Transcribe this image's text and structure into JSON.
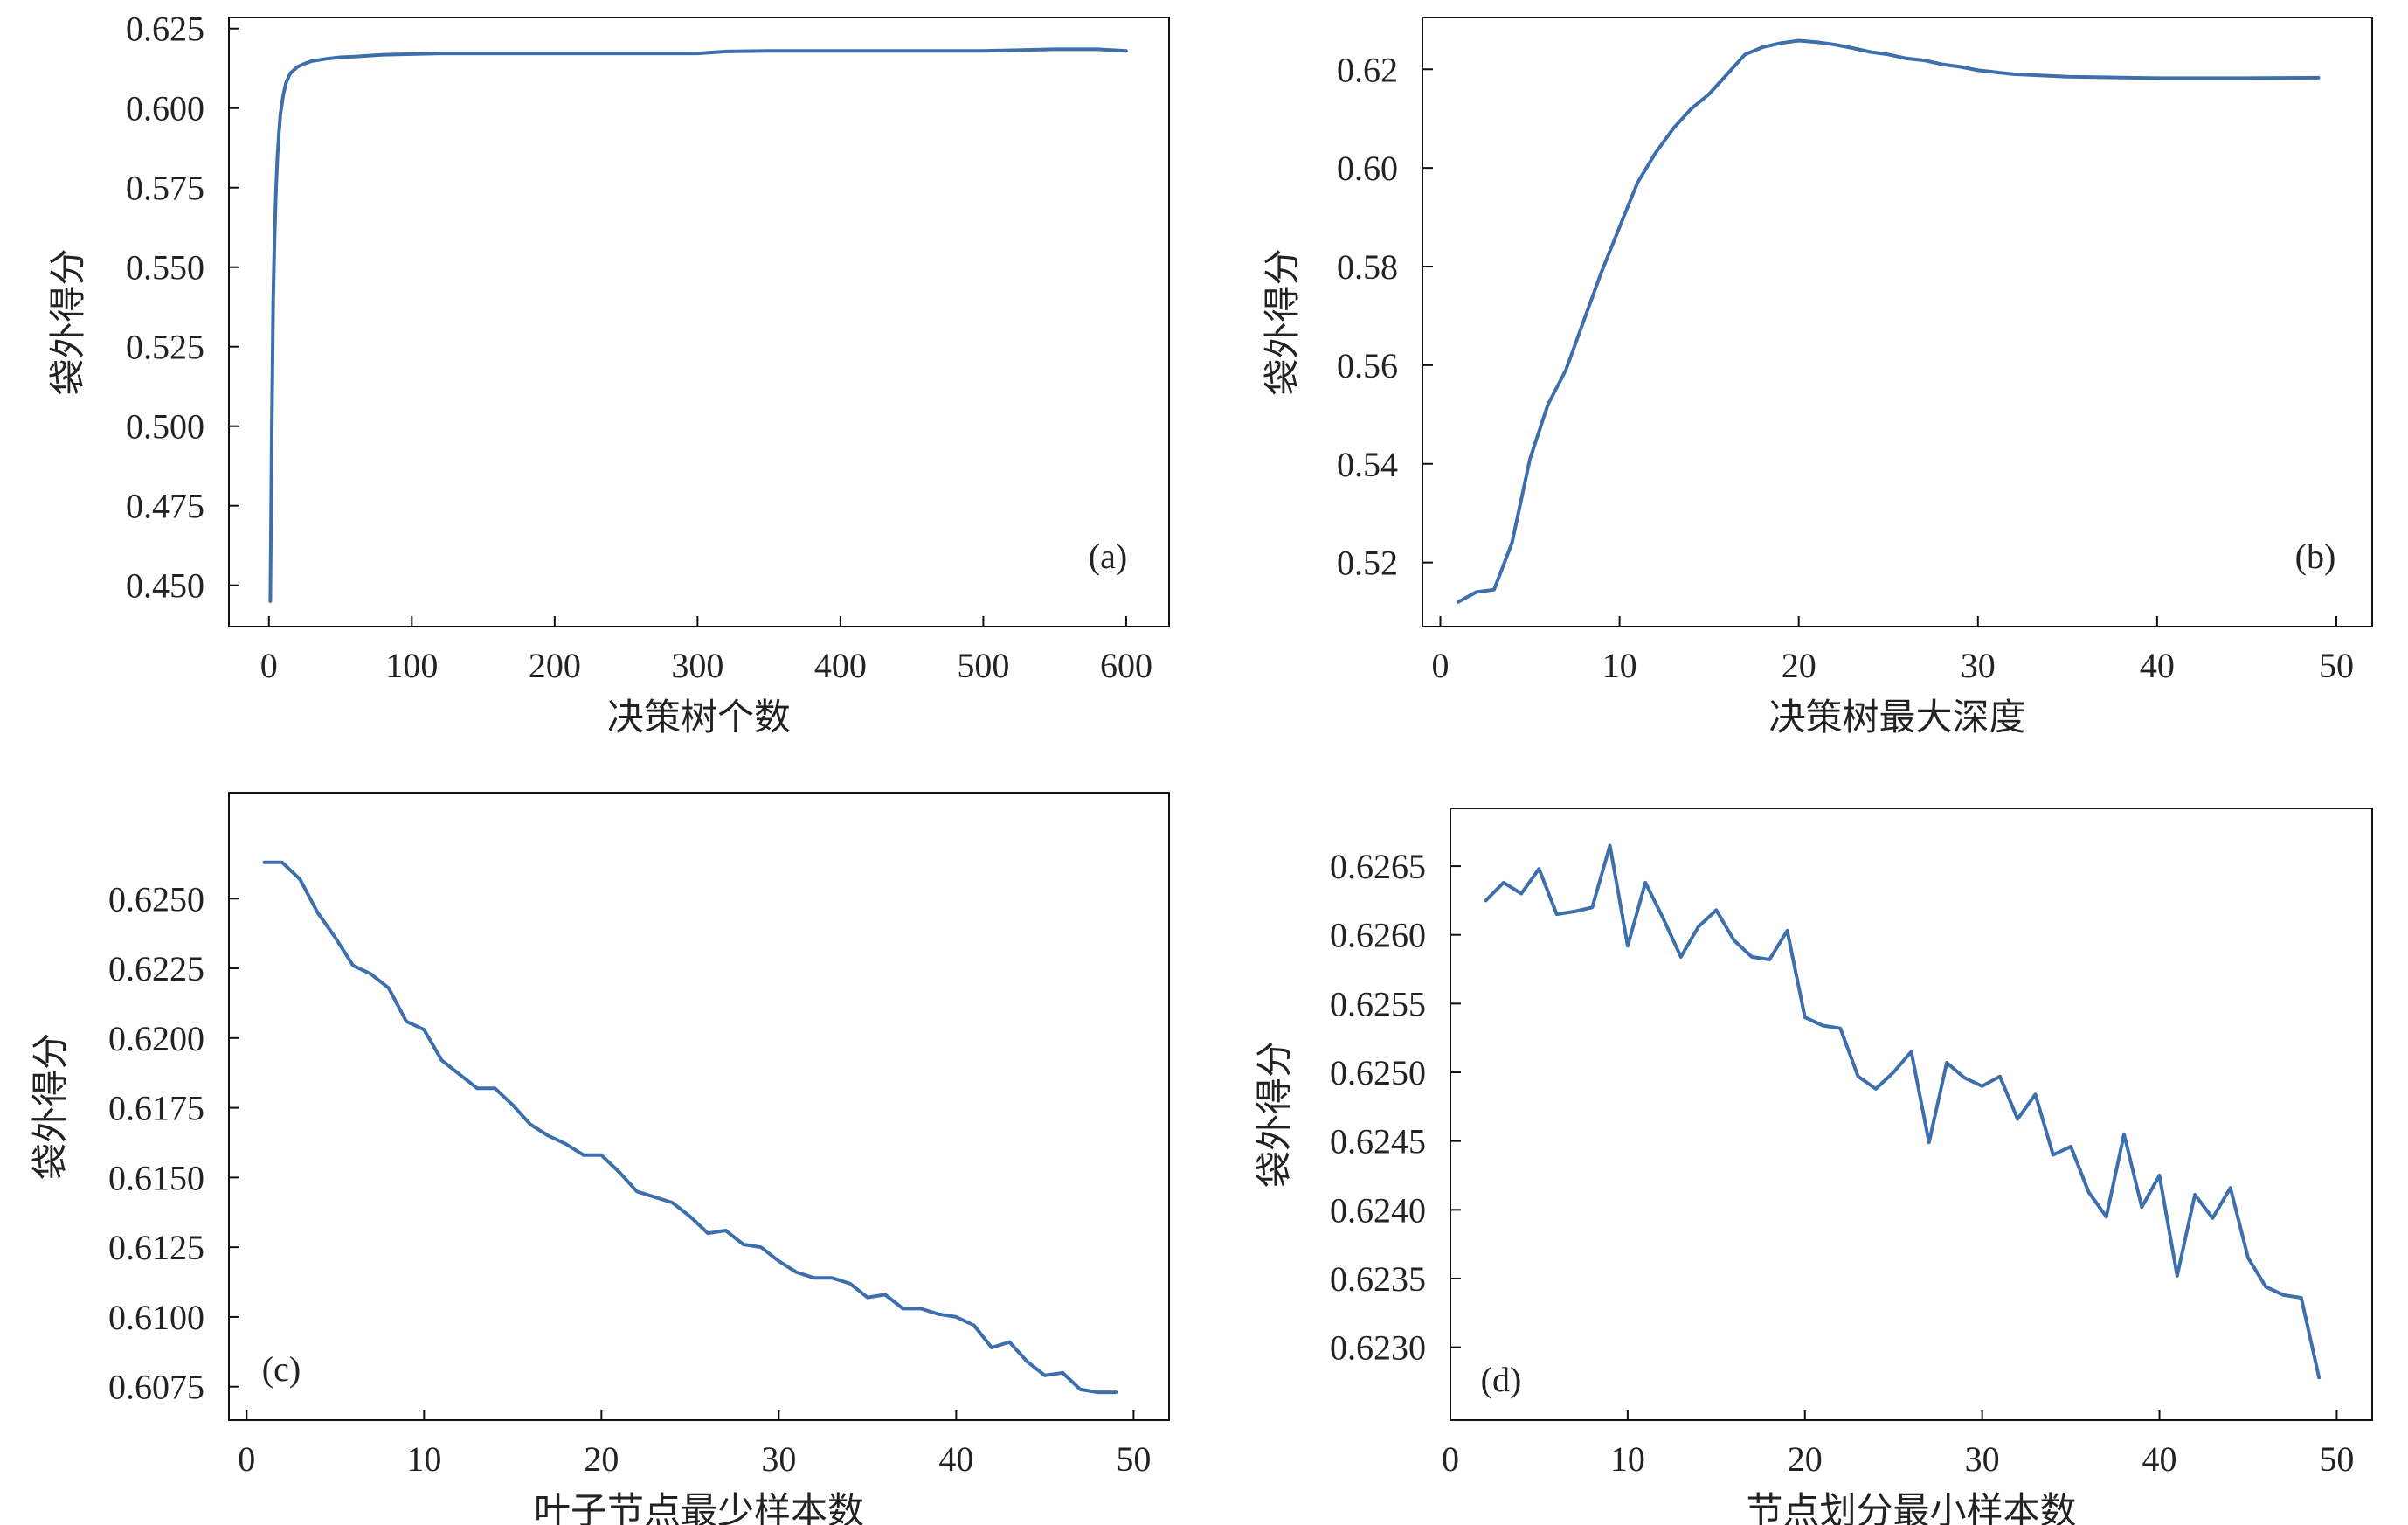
{
  "colors": {
    "series": "#3d6fad",
    "axis": "#111111",
    "text": "#222222"
  },
  "chart_data": [
    {
      "type": "line",
      "panel_label": "(a)",
      "xlabel": "决策树个数",
      "ylabel": "袋外得分",
      "xlim": [
        -28,
        630
      ],
      "ylim": [
        0.437,
        0.6285
      ],
      "xticks": [
        0,
        100,
        200,
        300,
        400,
        500,
        600
      ],
      "yticks": [
        0.45,
        0.475,
        0.5,
        0.525,
        0.55,
        0.575,
        0.6,
        0.625
      ],
      "ytick_decimals": 3,
      "series": [
        {
          "x": [
            1,
            2,
            3,
            4,
            5,
            6,
            7,
            8,
            10,
            12,
            15,
            20,
            25,
            30,
            40,
            50,
            60,
            80,
            100,
            120,
            150,
            200,
            250,
            300,
            320,
            350,
            400,
            450,
            500,
            550,
            580,
            600
          ],
          "values": [
            0.445,
            0.5,
            0.54,
            0.56,
            0.575,
            0.585,
            0.592,
            0.598,
            0.604,
            0.608,
            0.611,
            0.613,
            0.614,
            0.6148,
            0.6155,
            0.616,
            0.6162,
            0.6168,
            0.617,
            0.6172,
            0.6172,
            0.6172,
            0.6172,
            0.6172,
            0.6178,
            0.618,
            0.618,
            0.618,
            0.618,
            0.6185,
            0.6185,
            0.618
          ]
        }
      ]
    },
    {
      "type": "line",
      "panel_label": "(b)",
      "xlabel": "决策树最大深度",
      "ylabel": "袋外得分",
      "xlim": [
        -1,
        52
      ],
      "ylim": [
        0.507,
        0.6305
      ],
      "xticks": [
        0,
        10,
        20,
        30,
        40,
        50
      ],
      "yticks": [
        0.52,
        0.54,
        0.56,
        0.58,
        0.6,
        0.62
      ],
      "ytick_decimals": 2,
      "series": [
        {
          "x": [
            1,
            2,
            3,
            4,
            5,
            6,
            7,
            8,
            9,
            10,
            11,
            12,
            13,
            14,
            15,
            16,
            17,
            18,
            19,
            20,
            21,
            22,
            23,
            24,
            25,
            26,
            27,
            28,
            29,
            30,
            32,
            35,
            40,
            45,
            49
          ],
          "values": [
            0.512,
            0.514,
            0.5145,
            0.524,
            0.541,
            0.552,
            0.559,
            0.569,
            0.579,
            0.588,
            0.597,
            0.603,
            0.608,
            0.612,
            0.615,
            0.619,
            0.623,
            0.6245,
            0.6253,
            0.6258,
            0.6255,
            0.625,
            0.6243,
            0.6235,
            0.623,
            0.6222,
            0.6218,
            0.621,
            0.6205,
            0.6198,
            0.619,
            0.6185,
            0.6182,
            0.6182,
            0.6183
          ]
        }
      ]
    },
    {
      "type": "line",
      "panel_label": "(c)",
      "xlabel": "叶子节点最少样本数",
      "ylabel": "袋外得分",
      "xlim": [
        -1,
        52
      ],
      "ylim": [
        0.6063,
        0.6288
      ],
      "xticks": [
        0,
        10,
        20,
        30,
        40,
        50
      ],
      "yticks": [
        0.6075,
        0.61,
        0.6125,
        0.615,
        0.6175,
        0.62,
        0.6225,
        0.625
      ],
      "ytick_decimals": 4,
      "series": [
        {
          "x": [
            1,
            2,
            3,
            4,
            5,
            6,
            7,
            8,
            9,
            10,
            11,
            12,
            13,
            14,
            15,
            16,
            17,
            18,
            19,
            20,
            21,
            22,
            23,
            24,
            25,
            26,
            27,
            28,
            29,
            30,
            31,
            32,
            33,
            34,
            35,
            36,
            37,
            38,
            39,
            40,
            41,
            42,
            43,
            44,
            45,
            46,
            47,
            48,
            49
          ],
          "values": [
            0.6263,
            0.6263,
            0.6257,
            0.6245,
            0.6236,
            0.6226,
            0.6223,
            0.6218,
            0.6206,
            0.6203,
            0.6192,
            0.6187,
            0.6182,
            0.6182,
            0.6176,
            0.6169,
            0.6165,
            0.6162,
            0.6158,
            0.6158,
            0.6152,
            0.6145,
            0.6143,
            0.6141,
            0.6136,
            0.613,
            0.6131,
            0.6126,
            0.6125,
            0.612,
            0.6116,
            0.6114,
            0.6114,
            0.6112,
            0.6107,
            0.6108,
            0.6103,
            0.6103,
            0.6101,
            0.61,
            0.6097,
            0.6089,
            0.6091,
            0.6084,
            0.6079,
            0.608,
            0.6074,
            0.6073,
            0.6073
          ]
        }
      ]
    },
    {
      "type": "line",
      "panel_label": "(d)",
      "xlabel": "节点划分最小样本数",
      "ylabel": "袋外得分",
      "xlim": [
        0,
        52
      ],
      "ylim": [
        0.62247,
        0.62692
      ],
      "xticks": [
        0,
        10,
        20,
        30,
        40,
        50
      ],
      "yticks": [
        0.623,
        0.6235,
        0.624,
        0.6245,
        0.625,
        0.6255,
        0.626,
        0.6265
      ],
      "ytick_decimals": 4,
      "series": [
        {
          "x": [
            2,
            3,
            4,
            5,
            6,
            7,
            8,
            9,
            10,
            11,
            12,
            13,
            14,
            15,
            16,
            17,
            18,
            19,
            20,
            21,
            22,
            23,
            24,
            25,
            26,
            27,
            28,
            29,
            30,
            31,
            32,
            33,
            34,
            35,
            36,
            37,
            38,
            39,
            40,
            41,
            42,
            43,
            44,
            45,
            46,
            47,
            48,
            49
          ],
          "values": [
            0.62625,
            0.62638,
            0.6263,
            0.62648,
            0.62615,
            0.62617,
            0.6262,
            0.62665,
            0.62592,
            0.62638,
            0.62612,
            0.62584,
            0.62606,
            0.62618,
            0.62596,
            0.62584,
            0.62582,
            0.62603,
            0.6254,
            0.62534,
            0.62532,
            0.62497,
            0.62488,
            0.625,
            0.62515,
            0.62449,
            0.62507,
            0.62496,
            0.6249,
            0.62497,
            0.62466,
            0.62484,
            0.6244,
            0.62446,
            0.62413,
            0.62395,
            0.62455,
            0.62402,
            0.62425,
            0.62352,
            0.62411,
            0.62394,
            0.62416,
            0.62365,
            0.62344,
            0.62338,
            0.62336,
            0.62278
          ]
        }
      ]
    }
  ]
}
